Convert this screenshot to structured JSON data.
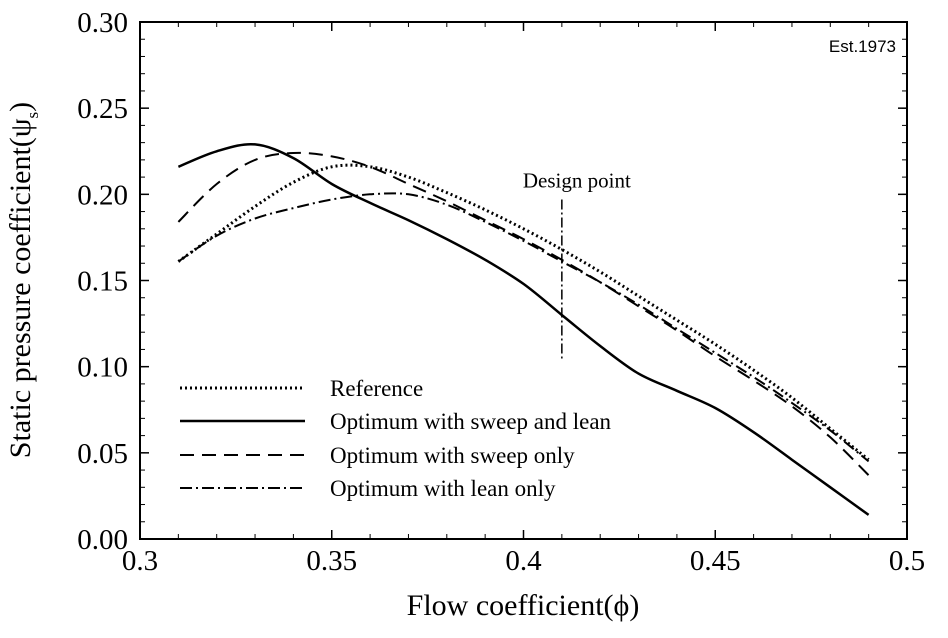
{
  "watermark": "Est.1973",
  "chart_data": {
    "type": "line",
    "xlabel": "Flow coefficient(ϕ)",
    "ylabel": "Static pressure coefficient(ψ",
    "ylabel_subscript": "s",
    "ylabel_close": ")",
    "xlim": [
      0.3,
      0.5
    ],
    "ylim": [
      0.0,
      0.3
    ],
    "xticks": [
      0.3,
      0.35,
      0.4,
      0.45,
      0.5
    ],
    "xtick_labels": [
      "0.3",
      "0.35",
      "0.4",
      "0.45",
      "0.5"
    ],
    "yticks": [
      0.0,
      0.05,
      0.1,
      0.15,
      0.2,
      0.25,
      0.3
    ],
    "ytick_labels": [
      "0.00",
      "0.05",
      "0.10",
      "0.15",
      "0.20",
      "0.25",
      "0.30"
    ],
    "grid": false,
    "legend_position": "bottom-left",
    "annotation": {
      "text": "Design point",
      "x": 0.41,
      "y_range": [
        0.103,
        0.197
      ]
    },
    "series": [
      {
        "name": "Reference",
        "style": "dotted",
        "x": [
          0.31,
          0.32,
          0.33,
          0.34,
          0.35,
          0.36,
          0.37,
          0.38,
          0.39,
          0.4,
          0.41,
          0.42,
          0.43,
          0.44,
          0.45,
          0.46,
          0.47,
          0.48,
          0.49
        ],
        "y": [
          0.161,
          0.177,
          0.193,
          0.207,
          0.216,
          0.216,
          0.21,
          0.201,
          0.191,
          0.18,
          0.168,
          0.155,
          0.141,
          0.127,
          0.113,
          0.098,
          0.082,
          0.064,
          0.046
        ]
      },
      {
        "name": "Optimum with sweep and lean",
        "style": "solid",
        "x": [
          0.31,
          0.32,
          0.33,
          0.34,
          0.35,
          0.36,
          0.37,
          0.38,
          0.39,
          0.4,
          0.41,
          0.42,
          0.43,
          0.44,
          0.45,
          0.46,
          0.47,
          0.48,
          0.49
        ],
        "y": [
          0.216,
          0.225,
          0.229,
          0.221,
          0.206,
          0.195,
          0.185,
          0.174,
          0.162,
          0.148,
          0.13,
          0.112,
          0.096,
          0.086,
          0.076,
          0.062,
          0.046,
          0.03,
          0.014
        ]
      },
      {
        "name": "Optimum with sweep only",
        "style": "dashed",
        "x": [
          0.31,
          0.32,
          0.33,
          0.34,
          0.35,
          0.36,
          0.37,
          0.38,
          0.39,
          0.4,
          0.41,
          0.42,
          0.43,
          0.44,
          0.45,
          0.46,
          0.47,
          0.48,
          0.49
        ],
        "y": [
          0.184,
          0.206,
          0.22,
          0.224,
          0.222,
          0.216,
          0.206,
          0.196,
          0.185,
          0.174,
          0.162,
          0.149,
          0.135,
          0.121,
          0.106,
          0.092,
          0.077,
          0.059,
          0.037
        ]
      },
      {
        "name": "Optimum with lean only",
        "style": "dashdot",
        "x": [
          0.31,
          0.32,
          0.33,
          0.34,
          0.35,
          0.36,
          0.37,
          0.38,
          0.39,
          0.4,
          0.41,
          0.42,
          0.43,
          0.44,
          0.45,
          0.46,
          0.47,
          0.48,
          0.49
        ],
        "y": [
          0.161,
          0.176,
          0.186,
          0.192,
          0.197,
          0.2,
          0.2,
          0.194,
          0.184,
          0.173,
          0.161,
          0.149,
          0.136,
          0.122,
          0.108,
          0.094,
          0.079,
          0.063,
          0.045
        ]
      }
    ]
  }
}
